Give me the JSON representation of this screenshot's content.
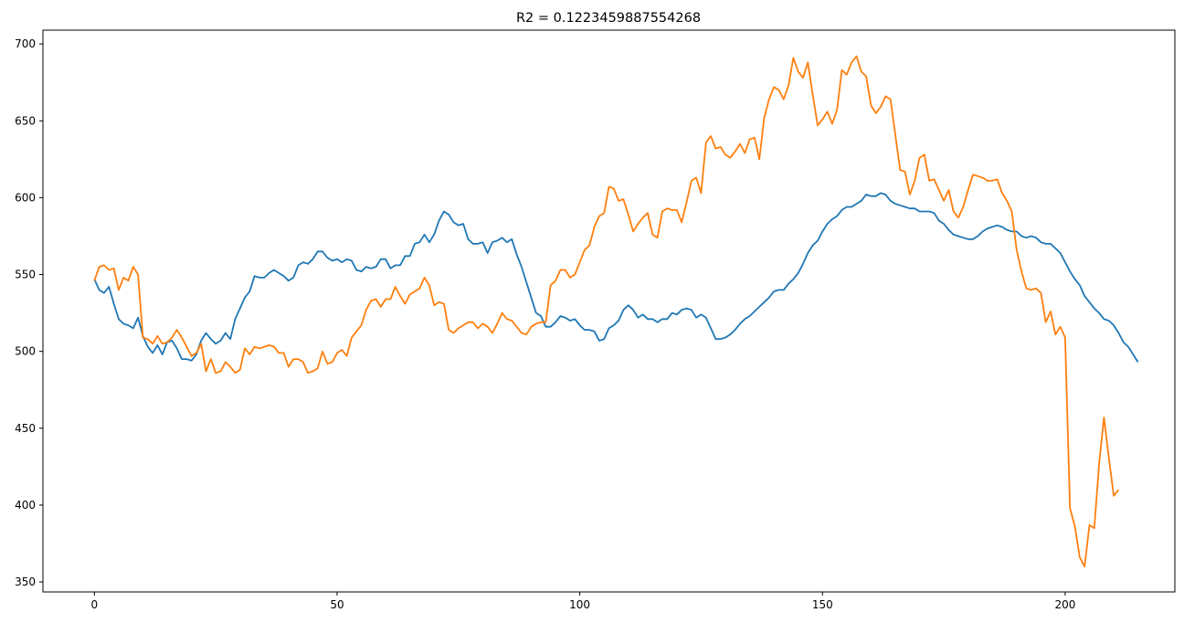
{
  "chart_data": {
    "type": "line",
    "title": "R2 = 0.1223459887554268",
    "xlabel": "",
    "ylabel": "",
    "xlim": [
      -10.6,
      222.6
    ],
    "ylim": [
      343.5,
      709.0
    ],
    "xticks": [
      0,
      50,
      100,
      150,
      200
    ],
    "yticks": [
      350,
      400,
      450,
      500,
      550,
      600,
      650,
      700
    ],
    "grid": false,
    "legend": "none",
    "series": [
      {
        "color": "#1f77b4",
        "values": [
          547,
          540,
          538,
          542,
          531,
          521,
          518,
          517,
          515,
          522,
          510,
          503,
          499,
          504,
          498,
          506,
          507,
          502,
          495,
          495,
          494,
          498,
          507,
          512,
          508,
          505,
          507,
          512,
          508,
          521,
          528,
          535,
          539,
          549,
          548,
          548,
          551,
          553,
          551,
          549,
          546,
          548,
          556,
          558,
          557,
          560,
          565,
          565,
          561,
          559,
          560,
          558,
          560,
          559,
          553,
          552,
          555,
          554,
          555,
          560,
          560,
          554,
          556,
          556,
          562,
          562,
          570,
          571,
          576,
          571,
          576,
          585,
          591,
          589,
          584,
          582,
          583,
          573,
          570,
          570,
          571,
          564,
          571,
          572,
          574,
          571,
          573,
          563,
          555,
          545,
          535,
          525,
          523,
          516,
          516,
          519,
          523,
          522,
          520,
          521,
          517,
          514,
          514,
          513,
          507,
          508,
          515,
          517,
          520,
          527,
          530,
          527,
          522,
          524,
          521,
          521,
          519,
          521,
          521,
          525,
          524,
          527,
          528,
          527,
          522,
          524,
          522,
          515,
          508,
          508,
          509,
          511,
          514,
          518,
          521,
          523,
          526,
          529,
          532,
          535,
          539,
          540,
          540,
          544,
          547,
          551,
          557,
          564,
          569,
          572,
          578,
          583,
          586,
          588,
          592,
          594,
          594,
          596,
          598,
          602,
          601,
          601,
          603,
          602,
          598,
          596,
          595,
          594,
          593,
          593,
          591,
          591,
          591,
          590,
          585,
          583,
          579,
          576,
          575,
          574,
          573,
          573,
          575,
          578,
          580,
          581,
          582,
          581,
          579,
          578,
          578,
          575,
          574,
          575,
          574,
          571,
          570,
          570,
          567,
          564,
          558,
          552,
          547,
          543,
          536,
          532,
          528,
          525,
          521,
          520,
          517,
          512,
          506,
          503,
          498,
          493
        ]
      },
      {
        "color": "#ff7f0e",
        "values": [
          546,
          555,
          556,
          553,
          554,
          540,
          548,
          546,
          555,
          550,
          509,
          508,
          505,
          510,
          505,
          506,
          509,
          514,
          509,
          503,
          497,
          499,
          505,
          487,
          495,
          486,
          487,
          493,
          490,
          486,
          488,
          502,
          498,
          503,
          502,
          503,
          504,
          503,
          499,
          499,
          490,
          495,
          495,
          493,
          486,
          487,
          489,
          500,
          492,
          493,
          499,
          501,
          497,
          509,
          513,
          517,
          527,
          533,
          534,
          529,
          534,
          534,
          542,
          536,
          531,
          537,
          539,
          541,
          548,
          543,
          530,
          532,
          531,
          514,
          512,
          515,
          517,
          519,
          519,
          515,
          518,
          516,
          512,
          518,
          525,
          521,
          520,
          516,
          512,
          511,
          516,
          518,
          519,
          519,
          543,
          546,
          553,
          553,
          548,
          550,
          558,
          566,
          569,
          581,
          588,
          590,
          607,
          606,
          598,
          599,
          589,
          578,
          583,
          587,
          590,
          576,
          574,
          591,
          593,
          592,
          592,
          584,
          597,
          611,
          613,
          603,
          636,
          640,
          632,
          633,
          628,
          626,
          630,
          635,
          629,
          638,
          639,
          625,
          652,
          664,
          672,
          670,
          664,
          673,
          691,
          682,
          678,
          688,
          667,
          647,
          651,
          656,
          648,
          657,
          683,
          680,
          688,
          692,
          682,
          679,
          660,
          655,
          659,
          666,
          664,
          641,
          618,
          617,
          602,
          611,
          626,
          628,
          611,
          612,
          605,
          598,
          605,
          591,
          587,
          594,
          605,
          615,
          614,
          613,
          611,
          611,
          612,
          603,
          598,
          591,
          566,
          552,
          541,
          540,
          541,
          538,
          519,
          526,
          511,
          516,
          509,
          398,
          386,
          366,
          360,
          387,
          385,
          427,
          457,
          431,
          406,
          410
        ]
      }
    ]
  }
}
